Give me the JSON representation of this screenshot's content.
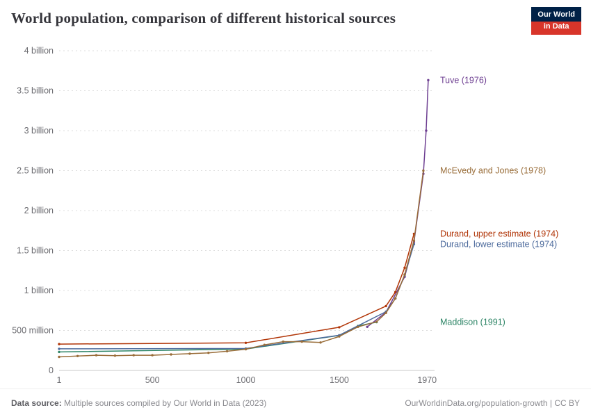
{
  "colors": {
    "background": "#ffffff",
    "logo_navy": "#002147",
    "logo_red": "#d8352a",
    "title_text": "#35353b",
    "tick_text": "#6c6c71",
    "gridline": "#dddddd",
    "zero_line": "#c9c9c9"
  },
  "logo": {
    "line1": "Our World",
    "line2": "in Data"
  },
  "header": {
    "title": "World population, comparison of different historical sources"
  },
  "footer": {
    "source_label": "Data source:",
    "source_text": " Multiple sources compiled by Our World in Data (2023)",
    "right_text": "OurWorldinData.org/population-growth | CC BY"
  },
  "chart_data": {
    "type": "line",
    "title": "World population, comparison of different historical sources",
    "unit": "billion people",
    "xlim": [
      1,
      2010
    ],
    "ylim": [
      0,
      4
    ],
    "x_ticks": [
      1,
      500,
      1000,
      1500,
      1970
    ],
    "x_tick_labels": [
      "1",
      "500",
      "1000",
      "1500",
      "1970"
    ],
    "y_ticks": [
      0,
      0.5,
      1,
      1.5,
      2,
      2.5,
      3,
      3.5,
      4
    ],
    "y_tick_labels": [
      "0",
      "500 million",
      "1 billion",
      "1.5 billion",
      "2 billion",
      "2.5 billion",
      "3 billion",
      "3.5 billion",
      "4 billion"
    ],
    "grid": true,
    "legend_position": "line-end-labels",
    "series": [
      {
        "name": "Tuve (1976)",
        "color": "#6d3e91",
        "points": [
          [
            1650,
            0.545
          ],
          [
            1750,
            0.728
          ],
          [
            1850,
            1.171
          ],
          [
            1900,
            1.608
          ],
          [
            1950,
            2.46
          ],
          [
            1965,
            3.0
          ],
          [
            1976,
            3.632
          ]
        ]
      },
      {
        "name": "Maddison (1991)",
        "color": "#2c8465",
        "points": [
          [
            1,
            0.231
          ],
          [
            1000,
            0.268
          ],
          [
            1500,
            0.438
          ],
          [
            1600,
            0.556
          ],
          [
            1700,
            0.604
          ]
        ]
      },
      {
        "name": "Durand, lower estimate (1974)",
        "color": "#4c6a9c",
        "points": [
          [
            1,
            0.27
          ],
          [
            1000,
            0.275
          ],
          [
            1500,
            0.44
          ],
          [
            1750,
            0.735
          ],
          [
            1800,
            0.9
          ],
          [
            1850,
            1.195
          ],
          [
            1900,
            1.58
          ]
        ]
      },
      {
        "name": "Durand, upper estimate (1974)",
        "color": "#b13507",
        "points": [
          [
            1,
            0.33
          ],
          [
            1000,
            0.345
          ],
          [
            1500,
            0.54
          ],
          [
            1750,
            0.805
          ],
          [
            1800,
            0.98
          ],
          [
            1850,
            1.285
          ],
          [
            1900,
            1.71
          ]
        ]
      },
      {
        "name": "McEvedy and Jones (1978)",
        "color": "#996d39",
        "points": [
          [
            1,
            0.17
          ],
          [
            100,
            0.18
          ],
          [
            200,
            0.19
          ],
          [
            300,
            0.185
          ],
          [
            400,
            0.19
          ],
          [
            500,
            0.19
          ],
          [
            600,
            0.2
          ],
          [
            700,
            0.21
          ],
          [
            800,
            0.22
          ],
          [
            900,
            0.24
          ],
          [
            1000,
            0.265
          ],
          [
            1100,
            0.32
          ],
          [
            1200,
            0.36
          ],
          [
            1300,
            0.36
          ],
          [
            1400,
            0.35
          ],
          [
            1500,
            0.425
          ],
          [
            1600,
            0.545
          ],
          [
            1700,
            0.61
          ],
          [
            1750,
            0.72
          ],
          [
            1800,
            0.9
          ],
          [
            1850,
            1.2
          ],
          [
            1900,
            1.625
          ],
          [
            1950,
            2.5
          ]
        ]
      }
    ]
  }
}
